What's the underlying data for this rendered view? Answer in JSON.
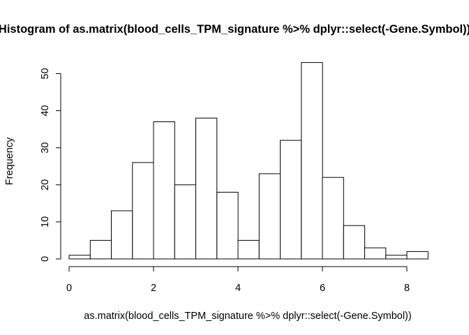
{
  "chart_data": {
    "type": "bar",
    "title": "Histogram of as.matrix(blood_cells_TPM_signature %>% dplyr::select(-Gene.Symbol))",
    "xlabel": "as.matrix(blood_cells_TPM_signature %>% dplyr::select(-Gene.Symbol))",
    "ylabel": "Frequency",
    "bin_edges": [
      0,
      0.5,
      1,
      1.5,
      2,
      2.5,
      3,
      3.5,
      4,
      4.5,
      5,
      5.5,
      6,
      6.5,
      7,
      7.5,
      8,
      8.5
    ],
    "values": [
      1,
      5,
      13,
      26,
      37,
      20,
      38,
      18,
      5,
      23,
      32,
      53,
      22,
      9,
      3,
      1,
      2
    ],
    "xticks": [
      0,
      2,
      4,
      6,
      8
    ],
    "yticks": [
      0,
      10,
      20,
      30,
      40,
      50
    ],
    "xlim": [
      0,
      8.5
    ],
    "ylim": [
      0,
      53
    ],
    "grid": false,
    "legend": "none"
  }
}
